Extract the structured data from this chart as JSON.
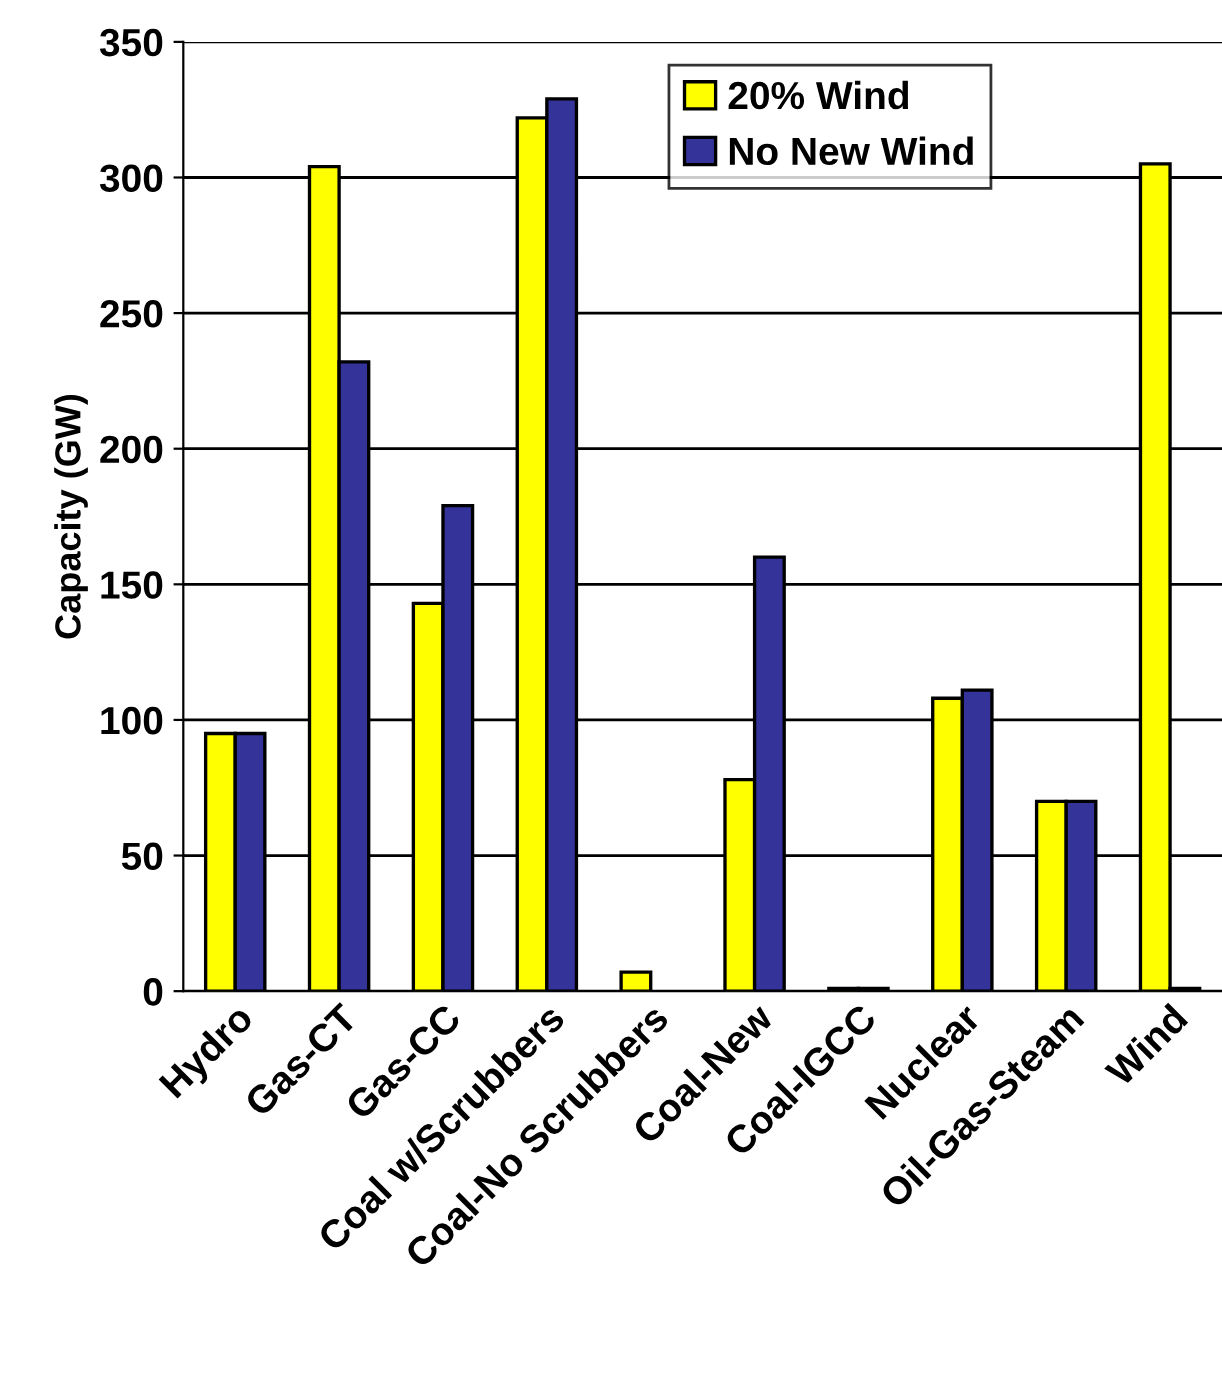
{
  "chart_data": {
    "type": "bar",
    "ylabel": "Capacity (GW)",
    "categories": [
      "Hydro",
      "Gas-CT",
      "Gas-CC",
      "Coal w/Scrubbers",
      "Coal-No Scrubbers",
      "Coal-New",
      "Coal-IGCC",
      "Nuclear",
      "Oil-Gas-Steam",
      "Wind"
    ],
    "series": [
      {
        "name": "20% Wind",
        "color": "#ffff00",
        "values": [
          95,
          304,
          143,
          322,
          7,
          78,
          1,
          108,
          70,
          305
        ]
      },
      {
        "name": "No New Wind",
        "color": "#333399",
        "values": [
          95,
          232,
          179,
          329,
          null,
          160,
          1,
          111,
          70,
          1
        ]
      }
    ],
    "ylim": [
      0,
      350
    ],
    "yticks": [
      0,
      50,
      100,
      150,
      200,
      250,
      300,
      350
    ],
    "grid": "y",
    "legend": "top right"
  }
}
